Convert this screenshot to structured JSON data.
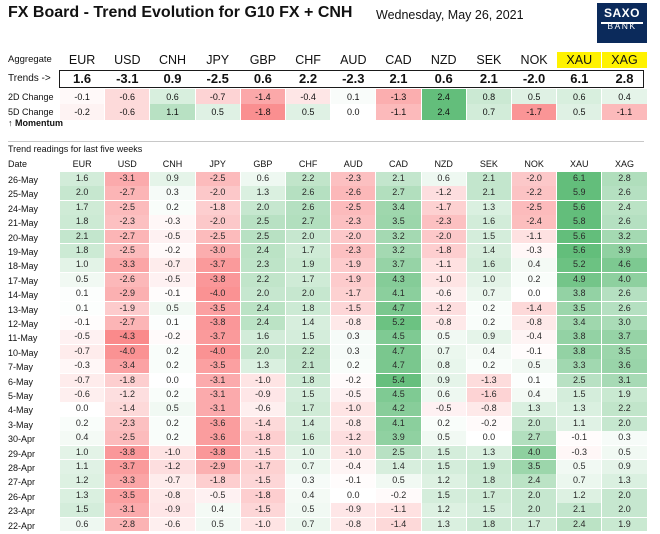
{
  "header": {
    "title": "FX Board - Trend Evolution for G10 FX + CNH",
    "date": "Wednesday, May 26, 2021",
    "logo_line1": "SAXO",
    "logo_line2": "BANK"
  },
  "aggregate_label": "Aggregate",
  "currencies": [
    "EUR",
    "USD",
    "CNH",
    "JPY",
    "GBP",
    "CHF",
    "AUD",
    "CAD",
    "NZD",
    "SEK",
    "NOK",
    "XAU",
    "XAG"
  ],
  "trends_label": "Trends ->",
  "trends": [
    "1.6",
    "-3.1",
    "0.9",
    "-2.5",
    "0.6",
    "2.2",
    "-2.3",
    "2.1",
    "0.6",
    "2.1",
    "-2.0",
    "6.1",
    "2.8"
  ],
  "change_2d_label": "2D Change",
  "change_2d": [
    "-0.1",
    "-0.6",
    "0.6",
    "-0.7",
    "-1.4",
    "-0.4",
    "0.1",
    "-1.3",
    "2.4",
    "0.8",
    "0.5",
    "0.6",
    "0.4"
  ],
  "change_5d_label": "5D Change",
  "change_5d": [
    "-0.2",
    "-0.6",
    "1.1",
    "0.5",
    "-1.8",
    "0.5",
    "0.0",
    "-1.1",
    "2.4",
    "0.7",
    "-1.7",
    "0.5",
    "-1.1"
  ],
  "momentum_label": "↑ Momentum",
  "readings_title": "Trend readings for last five weeks",
  "date_col_label": "Date",
  "colors": {
    "xau_header_bg": "#fff200",
    "trend_text": "#111111",
    "logo_bg": "#0b2a5b",
    "positive": "#63be7b",
    "negative": "#f8696b"
  },
  "rows": [
    {
      "date": "26-May",
      "values": [
        "1.6",
        "-3.1",
        "0.9",
        "-2.5",
        "0.6",
        "2.2",
        "-2.3",
        "2.1",
        "0.6",
        "2.1",
        "-2.0",
        "6.1",
        "2.8"
      ]
    },
    {
      "date": "25-May",
      "values": [
        "2.0",
        "-2.7",
        "0.3",
        "-2.0",
        "1.3",
        "2.6",
        "-2.6",
        "2.7",
        "-1.2",
        "2.1",
        "-2.2",
        "5.9",
        "2.6"
      ]
    },
    {
      "date": "24-May",
      "values": [
        "1.7",
        "-2.5",
        "0.2",
        "-1.8",
        "2.0",
        "2.6",
        "-2.5",
        "3.4",
        "-1.7",
        "1.3",
        "-2.5",
        "5.6",
        "2.4"
      ]
    },
    {
      "date": "21-May",
      "values": [
        "1.8",
        "-2.3",
        "-0.3",
        "-2.0",
        "2.5",
        "2.7",
        "-2.3",
        "3.5",
        "-2.3",
        "1.6",
        "-2.4",
        "5.8",
        "2.6"
      ]
    },
    {
      "date": "20-May",
      "values": [
        "2.1",
        "-2.7",
        "-0.5",
        "-2.5",
        "2.5",
        "2.0",
        "-2.0",
        "3.2",
        "-2.0",
        "1.5",
        "-1.1",
        "5.6",
        "3.2"
      ]
    },
    {
      "date": "19-May",
      "values": [
        "1.8",
        "-2.5",
        "-0.2",
        "-3.0",
        "2.4",
        "1.7",
        "-2.3",
        "3.2",
        "-1.8",
        "1.4",
        "-0.3",
        "5.6",
        "3.9"
      ]
    },
    {
      "date": "18-May",
      "values": [
        "1.0",
        "-3.3",
        "-0.7",
        "-3.7",
        "2.3",
        "1.9",
        "-1.9",
        "3.7",
        "-1.1",
        "1.6",
        "0.4",
        "5.2",
        "4.6"
      ]
    },
    {
      "date": "17-May",
      "values": [
        "0.5",
        "-2.6",
        "-0.5",
        "-3.8",
        "2.2",
        "1.7",
        "-1.9",
        "4.3",
        "-1.0",
        "1.0",
        "0.2",
        "4.9",
        "4.0"
      ]
    },
    {
      "date": "14-May",
      "values": [
        "0.1",
        "-2.9",
        "-0.1",
        "-4.0",
        "2.0",
        "2.0",
        "-1.7",
        "4.1",
        "-0.6",
        "0.7",
        "0.0",
        "3.8",
        "2.6"
      ]
    },
    {
      "date": "13-May",
      "values": [
        "0.1",
        "-1.9",
        "0.5",
        "-3.5",
        "2.4",
        "1.8",
        "-1.5",
        "4.7",
        "-1.2",
        "0.2",
        "-1.4",
        "3.5",
        "2.6"
      ]
    },
    {
      "date": "12-May",
      "values": [
        "-0.1",
        "-2.7",
        "0.1",
        "-3.8",
        "2.4",
        "1.4",
        "-0.8",
        "5.2",
        "-0.8",
        "0.2",
        "-0.8",
        "3.4",
        "3.0"
      ]
    },
    {
      "date": "11-May",
      "values": [
        "-0.5",
        "-4.3",
        "-0.2",
        "-3.7",
        "1.6",
        "1.5",
        "0.3",
        "4.5",
        "0.5",
        "0.9",
        "-0.4",
        "3.8",
        "3.7"
      ]
    },
    {
      "date": "10-May",
      "values": [
        "-0.7",
        "-4.0",
        "0.2",
        "-4.0",
        "2.0",
        "2.2",
        "0.3",
        "4.7",
        "0.7",
        "0.4",
        "-0.1",
        "3.8",
        "3.5"
      ]
    },
    {
      "date": "7-May",
      "values": [
        "-0.3",
        "-3.4",
        "0.2",
        "-3.5",
        "1.3",
        "2.1",
        "0.2",
        "4.7",
        "0.8",
        "0.2",
        "0.5",
        "3.3",
        "3.6"
      ]
    },
    {
      "date": "6-May",
      "values": [
        "-0.7",
        "-1.8",
        "0.0",
        "-3.1",
        "-1.0",
        "1.8",
        "-0.2",
        "5.4",
        "0.9",
        "-1.3",
        "0.1",
        "2.5",
        "3.1"
      ]
    },
    {
      "date": "5-May",
      "values": [
        "-0.6",
        "-1.2",
        "0.2",
        "-3.1",
        "-0.9",
        "1.5",
        "-0.5",
        "4.5",
        "0.6",
        "-1.6",
        "0.4",
        "1.5",
        "1.9"
      ]
    },
    {
      "date": "4-May",
      "values": [
        "0.0",
        "-1.4",
        "0.5",
        "-3.1",
        "-0.6",
        "1.7",
        "-1.0",
        "4.2",
        "-0.5",
        "-0.8",
        "1.3",
        "1.3",
        "2.2"
      ]
    },
    {
      "date": "3-May",
      "values": [
        "0.2",
        "-2.3",
        "0.2",
        "-3.6",
        "-1.4",
        "1.4",
        "-0.8",
        "4.1",
        "0.2",
        "-0.2",
        "2.0",
        "1.1",
        "2.0"
      ]
    },
    {
      "date": "30-Apr",
      "values": [
        "0.4",
        "-2.5",
        "0.2",
        "-3.6",
        "-1.8",
        "1.6",
        "-1.2",
        "3.9",
        "0.5",
        "0.0",
        "2.7",
        "-0.1",
        "0.3"
      ]
    },
    {
      "date": "29-Apr",
      "values": [
        "1.0",
        "-3.8",
        "-1.0",
        "-3.8",
        "-1.5",
        "1.0",
        "-1.0",
        "2.5",
        "1.5",
        "1.3",
        "4.0",
        "-0.3",
        "0.5"
      ]
    },
    {
      "date": "28-Apr",
      "values": [
        "1.1",
        "-3.7",
        "-1.2",
        "-2.9",
        "-1.7",
        "0.7",
        "-0.4",
        "1.4",
        "1.5",
        "1.9",
        "3.5",
        "0.5",
        "0.9"
      ]
    },
    {
      "date": "27-Apr",
      "values": [
        "1.2",
        "-3.3",
        "-0.7",
        "-1.8",
        "-1.5",
        "0.3",
        "-0.1",
        "0.5",
        "1.2",
        "1.8",
        "2.4",
        "0.7",
        "1.3"
      ]
    },
    {
      "date": "26-Apr",
      "values": [
        "1.3",
        "-3.5",
        "-0.8",
        "-0.5",
        "-1.8",
        "0.4",
        "0.0",
        "-0.2",
        "1.5",
        "1.7",
        "2.0",
        "1.2",
        "2.0"
      ]
    },
    {
      "date": "23-Apr",
      "values": [
        "1.5",
        "-3.1",
        "-0.9",
        "0.4",
        "-1.5",
        "0.5",
        "-0.9",
        "-1.1",
        "1.2",
        "1.5",
        "2.0",
        "2.1",
        "2.0"
      ]
    },
    {
      "date": "22-Apr",
      "values": [
        "0.6",
        "-2.8",
        "-0.6",
        "0.5",
        "-1.0",
        "0.7",
        "-0.8",
        "-1.4",
        "1.3",
        "1.8",
        "1.7",
        "2.4",
        "1.9"
      ]
    }
  ]
}
